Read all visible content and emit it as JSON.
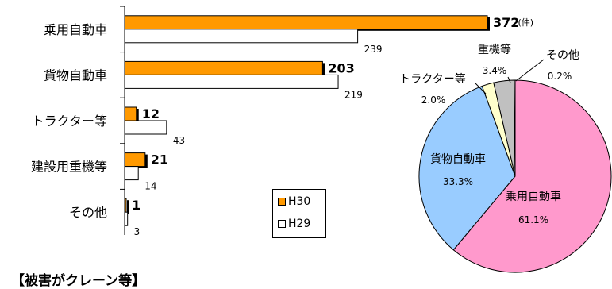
{
  "chart_data": [
    {
      "type": "bar",
      "orientation": "horizontal",
      "categories": [
        "乗用自動車",
        "貨物自動車",
        "トラクター等",
        "建設用重機等",
        "その他"
      ],
      "series": [
        {
          "name": "H30",
          "values": [
            372,
            203,
            12,
            21,
            1
          ],
          "color": "#ff9900"
        },
        {
          "name": "H29",
          "values": [
            239,
            219,
            43,
            14,
            3
          ],
          "color": "#ffffff"
        }
      ],
      "unit_label": "(件)",
      "xlim": [
        0,
        380
      ],
      "legend_position": "bottom-center"
    },
    {
      "type": "pie",
      "slices": [
        {
          "label": "乗用自動車",
          "value": 61.1,
          "display": "61.1%",
          "color": "#ff99cc"
        },
        {
          "label": "貨物自動車",
          "value": 33.3,
          "display": "33.3%",
          "color": "#99ccff"
        },
        {
          "label": "トラクター等",
          "value": 2.0,
          "display": "2.0%",
          "color": "#ffffcc"
        },
        {
          "label": "重機等",
          "value": 3.4,
          "display": "3.4%",
          "color": "#c0c0c0"
        },
        {
          "label": "その他",
          "value": 0.2,
          "display": "0.2%",
          "color": "#999999"
        }
      ]
    }
  ],
  "legend": {
    "h30": "H30",
    "h29": "H29"
  },
  "footer": "【被害がクレーン等】"
}
